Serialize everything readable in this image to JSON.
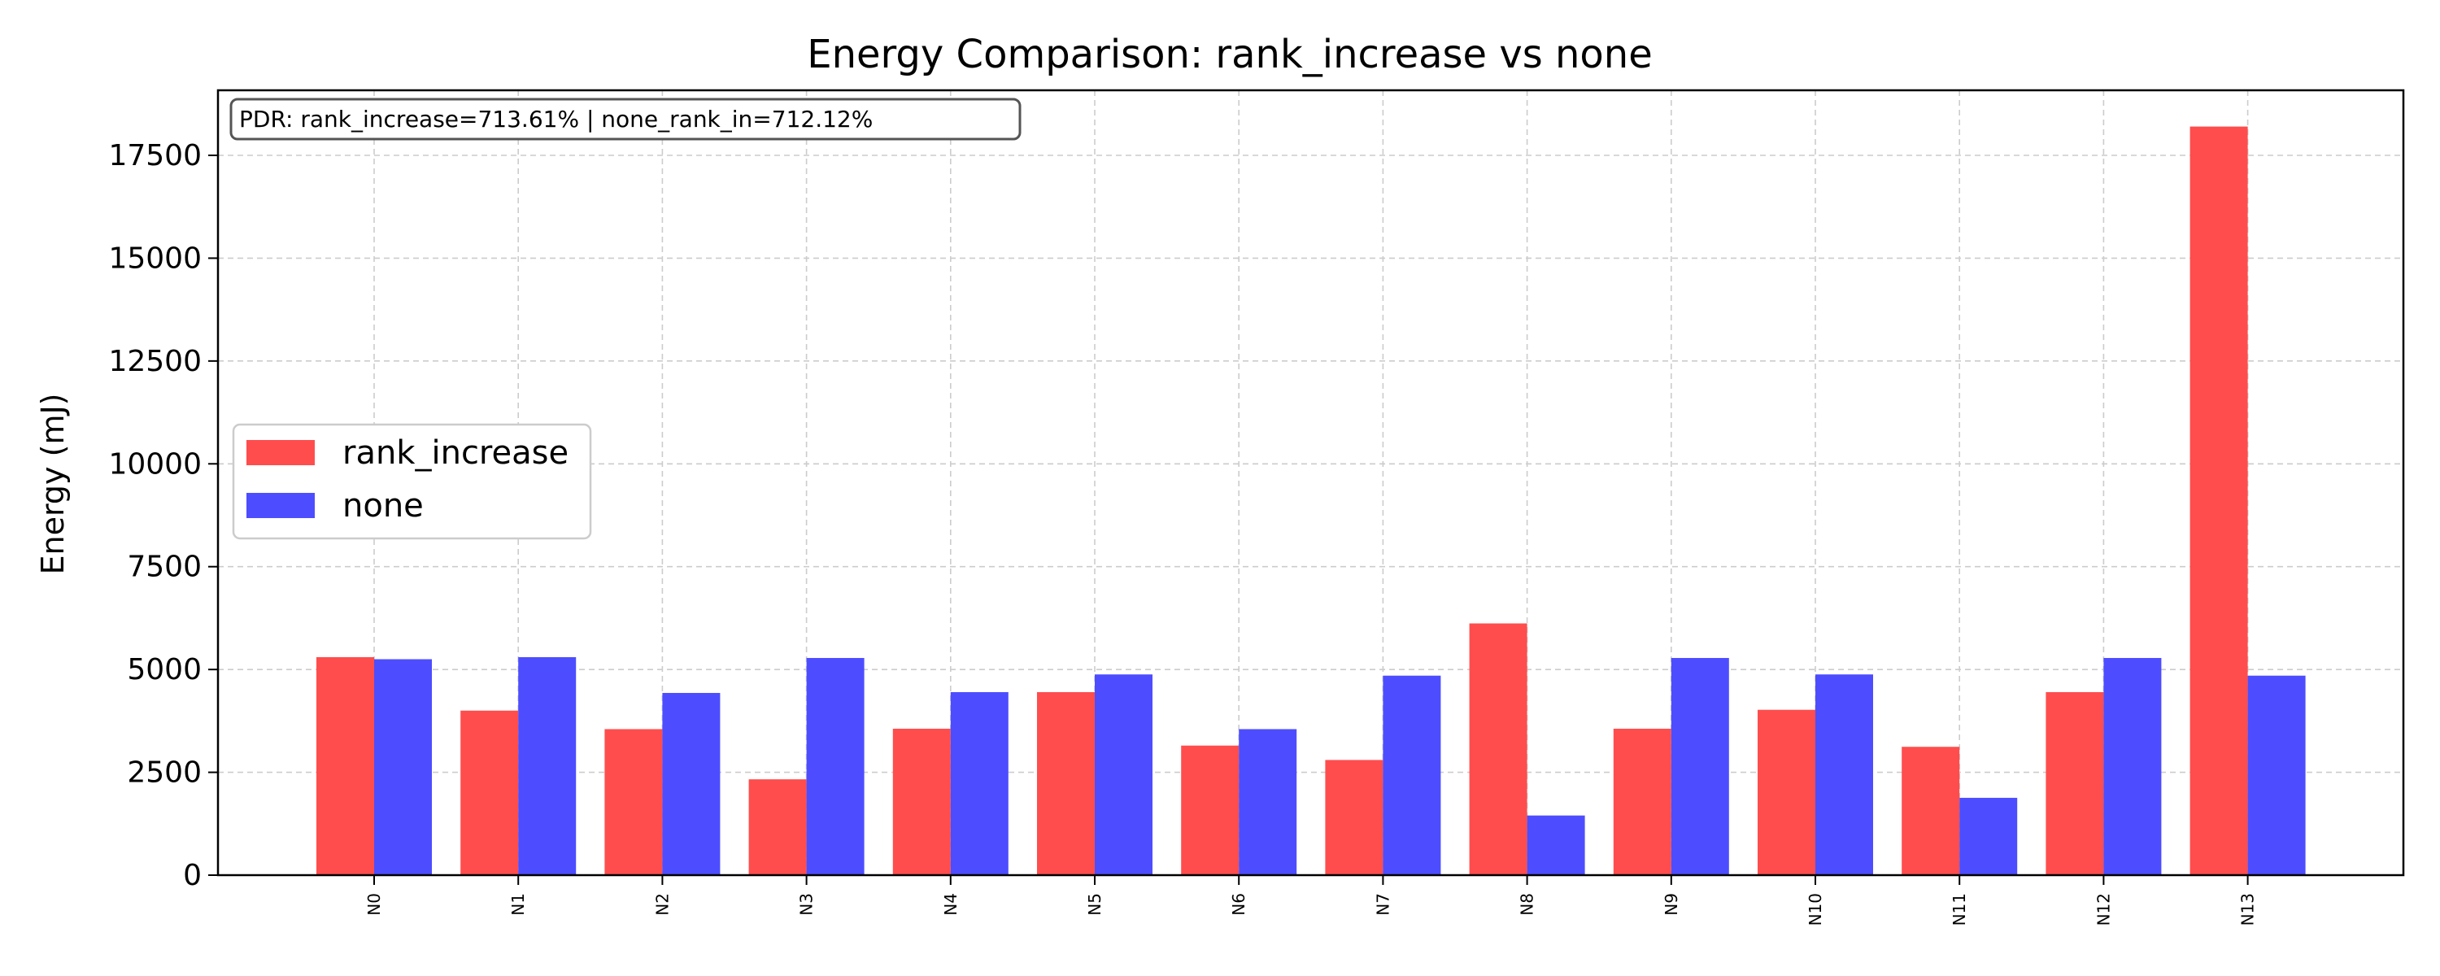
{
  "chart_data": {
    "type": "bar",
    "title": "Energy Comparison: rank_increase vs none",
    "xlabel": "",
    "ylabel": "Energy (mJ)",
    "categories": [
      "N0",
      "N1",
      "N2",
      "N3",
      "N4",
      "N5",
      "N6",
      "N7",
      "N8",
      "N9",
      "N10",
      "N11",
      "N12",
      "N13"
    ],
    "series": [
      {
        "name": "rank_increase",
        "color": "#ff4d4d",
        "values": [
          5300,
          4000,
          3550,
          2330,
          3560,
          4450,
          3150,
          2800,
          6120,
          3560,
          4020,
          3120,
          4450,
          18200
        ]
      },
      {
        "name": "none",
        "color": "#4d4dff",
        "values": [
          5250,
          5300,
          4430,
          5280,
          4450,
          4880,
          3550,
          4850,
          1450,
          5280,
          4880,
          1880,
          5280,
          4850
        ]
      }
    ],
    "ylim": [
      0,
      19000
    ],
    "yticks": [
      0,
      2500,
      5000,
      7500,
      10000,
      12500,
      15000,
      17500
    ],
    "grid": true,
    "legend_position": "center-left",
    "annotation": "PDR: rank_increase=713.61%  |  none_rank_in=712.12%"
  }
}
